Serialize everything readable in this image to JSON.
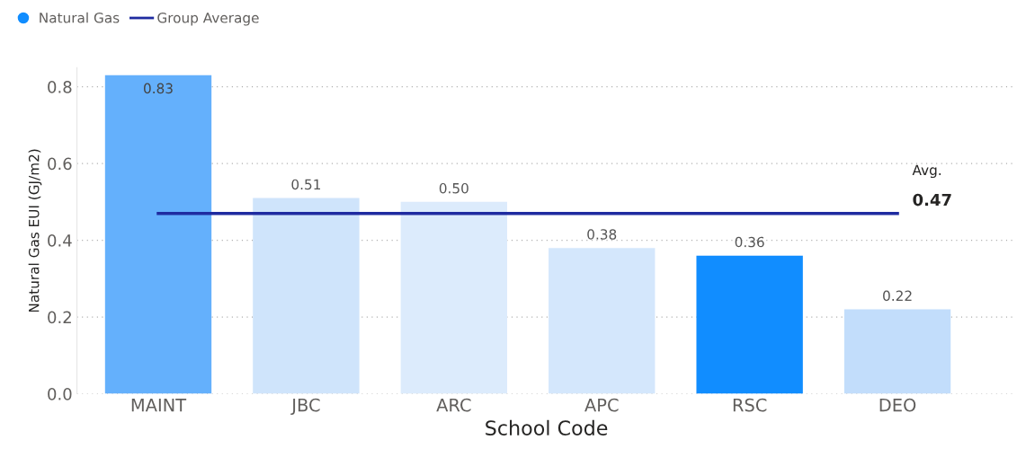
{
  "chart_data": {
    "type": "bar",
    "xlabel": "School Code",
    "ylabel": "Natural Gas EUI (GJ/m2)",
    "categories": [
      "MAINT",
      "JBC",
      "ARC",
      "APC",
      "RSC",
      "DEO"
    ],
    "series": [
      {
        "name": "Natural Gas",
        "values": [
          0.83,
          0.51,
          0.5,
          0.38,
          0.36,
          0.22
        ],
        "value_labels": [
          "0.83",
          "0.51",
          "0.50",
          "0.38",
          "0.36",
          "0.22"
        ],
        "colors": [
          "#64b0fc",
          "#cfe4fb",
          "#dcebfc",
          "#d4e7fc",
          "#118dff",
          "#c2ddfb"
        ],
        "color": "#118dff"
      },
      {
        "name": "Group Average",
        "type": "line",
        "values": [
          0.47,
          0.47,
          0.47,
          0.47,
          0.47,
          0.47
        ],
        "value_labels": [
          null,
          null,
          null,
          null,
          null,
          "0.47"
        ],
        "color": "#1f2ba0"
      }
    ],
    "annotations": [
      "Avg."
    ],
    "ylim": [
      0,
      0.85
    ],
    "yticks": [
      {
        "value": 0,
        "label": "0.0"
      },
      {
        "value": 0.2,
        "label": "0.2"
      },
      {
        "value": 0.4,
        "label": "0.4"
      },
      {
        "value": 0.6,
        "label": "0.6"
      },
      {
        "value": 0.8,
        "label": "0.8"
      }
    ],
    "grid": "y",
    "legend": "top left",
    "marker": "none"
  }
}
